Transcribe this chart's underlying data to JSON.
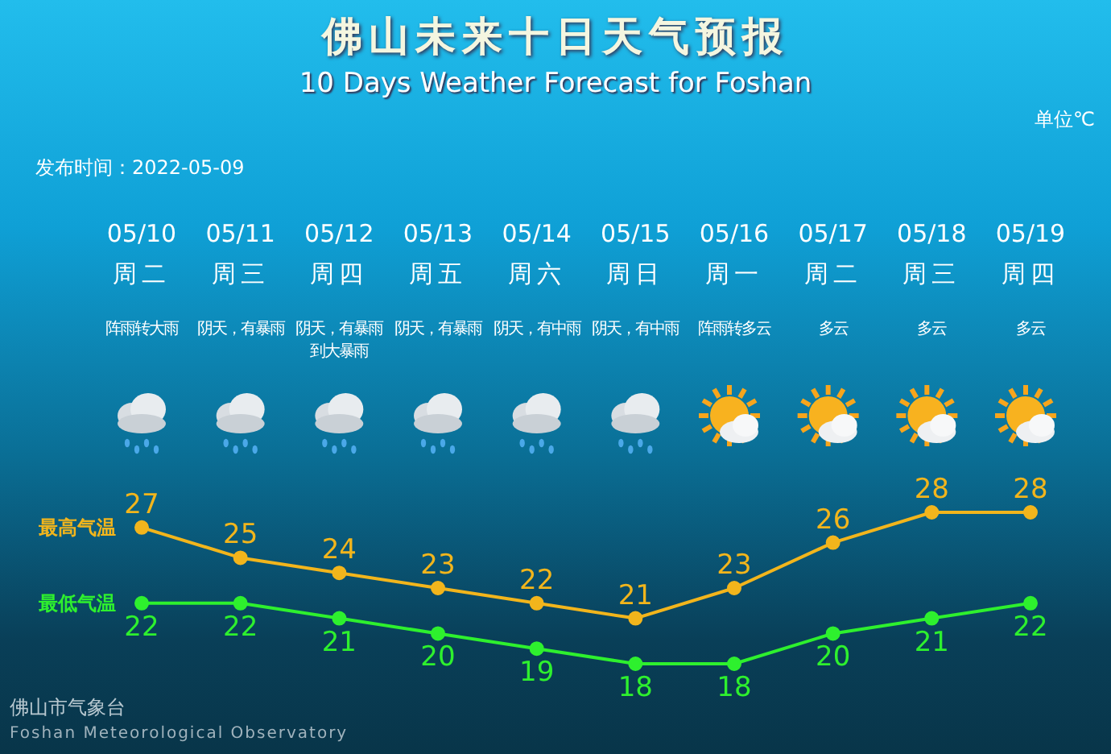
{
  "chart_data": {
    "type": "line",
    "title": "佛山未来十日天气预报",
    "subtitle": "10 Days Weather Forecast for Foshan",
    "categories": [
      "05/10",
      "05/11",
      "05/12",
      "05/13",
      "05/14",
      "05/15",
      "05/16",
      "05/17",
      "05/18",
      "05/19"
    ],
    "series": [
      {
        "name": "最高气温",
        "color": "#f2b51c",
        "values": [
          27,
          25,
          24,
          23,
          22,
          21,
          23,
          26,
          28,
          28
        ]
      },
      {
        "name": "最低气温",
        "color": "#2ef02e",
        "values": [
          22,
          22,
          21,
          20,
          19,
          18,
          18,
          20,
          21,
          22
        ]
      }
    ],
    "data_labels": true,
    "marker": "circle",
    "line_style": "solid",
    "annotations": [
      "单位℃",
      "发布时间：2022-05-09",
      "周二",
      "周三",
      "周四",
      "周五",
      "周六",
      "周日",
      "周一",
      "周二",
      "周三",
      "周四",
      "阵雨转大雨",
      "阴天，有暴雨",
      "阴天，有暴雨到大暴雨",
      "阴天，有暴雨",
      "阴天，有中雨",
      "阴天，有中雨",
      "阵雨转多云",
      "多云",
      "多云",
      "多云",
      "佛山市气象台",
      "Foshan Meteorological Observatory"
    ]
  }
}
